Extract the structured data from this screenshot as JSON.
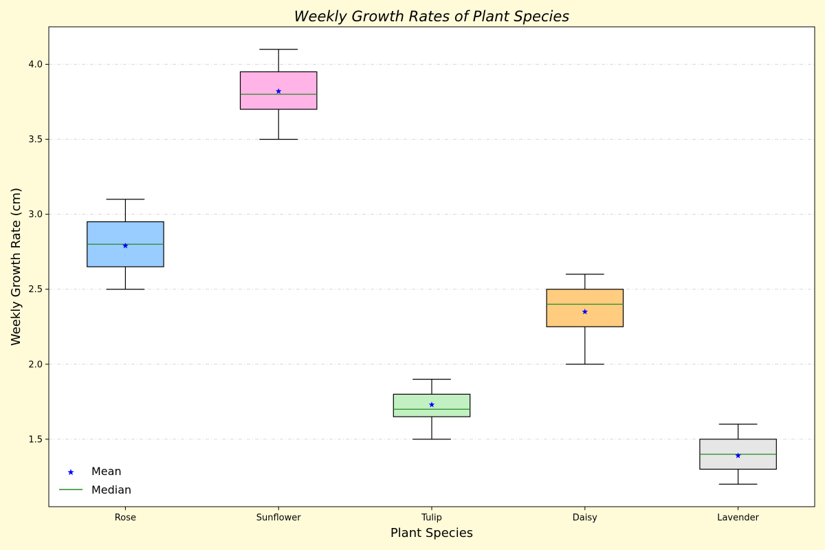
{
  "chart_data": {
    "type": "box",
    "title": "Weekly Growth Rates of Plant Species",
    "xlabel": "Plant Species",
    "ylabel": "Weekly Growth Rate (cm)",
    "ylim": [
      1.05,
      4.25
    ],
    "yticks": [
      1.5,
      2.0,
      2.5,
      3.0,
      3.5,
      4.0
    ],
    "ytick_labels": [
      "1.5",
      "2.0",
      "2.5",
      "3.0",
      "3.5",
      "4.0"
    ],
    "grid": "horizontal-dashed",
    "legend_position": "bottom-left",
    "legend": {
      "mean_label": "Mean",
      "median_label": "Median"
    },
    "colors": {
      "median": "#228b22",
      "mean": "#0000ff",
      "grid": "#cccccc"
    },
    "categories": [
      "Rose",
      "Sunflower",
      "Tulip",
      "Daisy",
      "Lavender"
    ],
    "boxes": [
      {
        "category": "Rose",
        "whisker_low": 2.5,
        "q1": 2.65,
        "median": 2.8,
        "q3": 2.95,
        "whisker_high": 3.1,
        "mean": 2.79,
        "color": "#99ccff"
      },
      {
        "category": "Sunflower",
        "whisker_low": 3.5,
        "q1": 3.7,
        "median": 3.8,
        "q3": 3.95,
        "whisker_high": 4.1,
        "mean": 3.82,
        "color": "#ffb3e6"
      },
      {
        "category": "Tulip",
        "whisker_low": 1.5,
        "q1": 1.65,
        "median": 1.7,
        "q3": 1.8,
        "whisker_high": 1.9,
        "mean": 1.73,
        "color": "#c2f0c2"
      },
      {
        "category": "Daisy",
        "whisker_low": 2.0,
        "q1": 2.25,
        "median": 2.4,
        "q3": 2.5,
        "whisker_high": 2.6,
        "mean": 2.35,
        "color": "#ffcc80"
      },
      {
        "category": "Lavender",
        "whisker_low": 1.2,
        "q1": 1.3,
        "median": 1.4,
        "q3": 1.5,
        "whisker_high": 1.6,
        "mean": 1.39,
        "color": "#e6e6e6"
      }
    ]
  }
}
